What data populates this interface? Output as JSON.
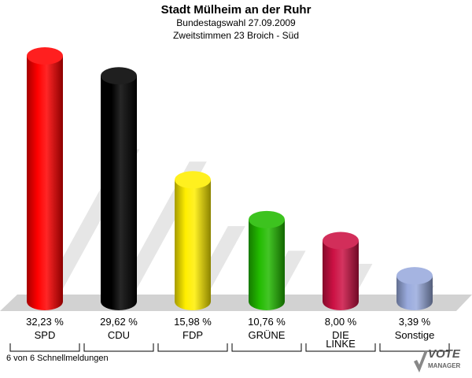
{
  "header": {
    "title": "Stadt Mülheim an der Ruhr",
    "subtitle1": "Bundestagswahl 27.09.2009",
    "subtitle2": "Zweitstimmen 23 Broich - Süd"
  },
  "footer": {
    "reports": "6 von 6 Schnellmeldungen"
  },
  "logo": {
    "line1": "VOTE",
    "line2": "MANAGER",
    "icon": "check-mark-icon"
  },
  "chart_data": {
    "type": "bar",
    "title": "Stadt Mülheim an der Ruhr",
    "categories": [
      "SPD",
      "CDU",
      "FDP",
      "GRÜNE",
      "DIE LINKE",
      "Sonstige"
    ],
    "category_lines": [
      [
        "SPD"
      ],
      [
        "CDU"
      ],
      [
        "FDP"
      ],
      [
        "GRÜNE"
      ],
      [
        "DIE",
        "LINKE"
      ],
      [
        "Sonstige"
      ]
    ],
    "values": [
      32.23,
      29.62,
      15.98,
      10.76,
      8.0,
      3.39
    ],
    "value_labels": [
      "32,23 %",
      "29,62 %",
      "15,98 %",
      "10,76 %",
      "8,00 %",
      "3,39 %"
    ],
    "colors": [
      "#ff0000",
      "#000000",
      "#ffee00",
      "#22bb00",
      "#cc1144",
      "#99aadd"
    ],
    "unit": "%",
    "ylim": [
      0,
      32.23
    ]
  }
}
